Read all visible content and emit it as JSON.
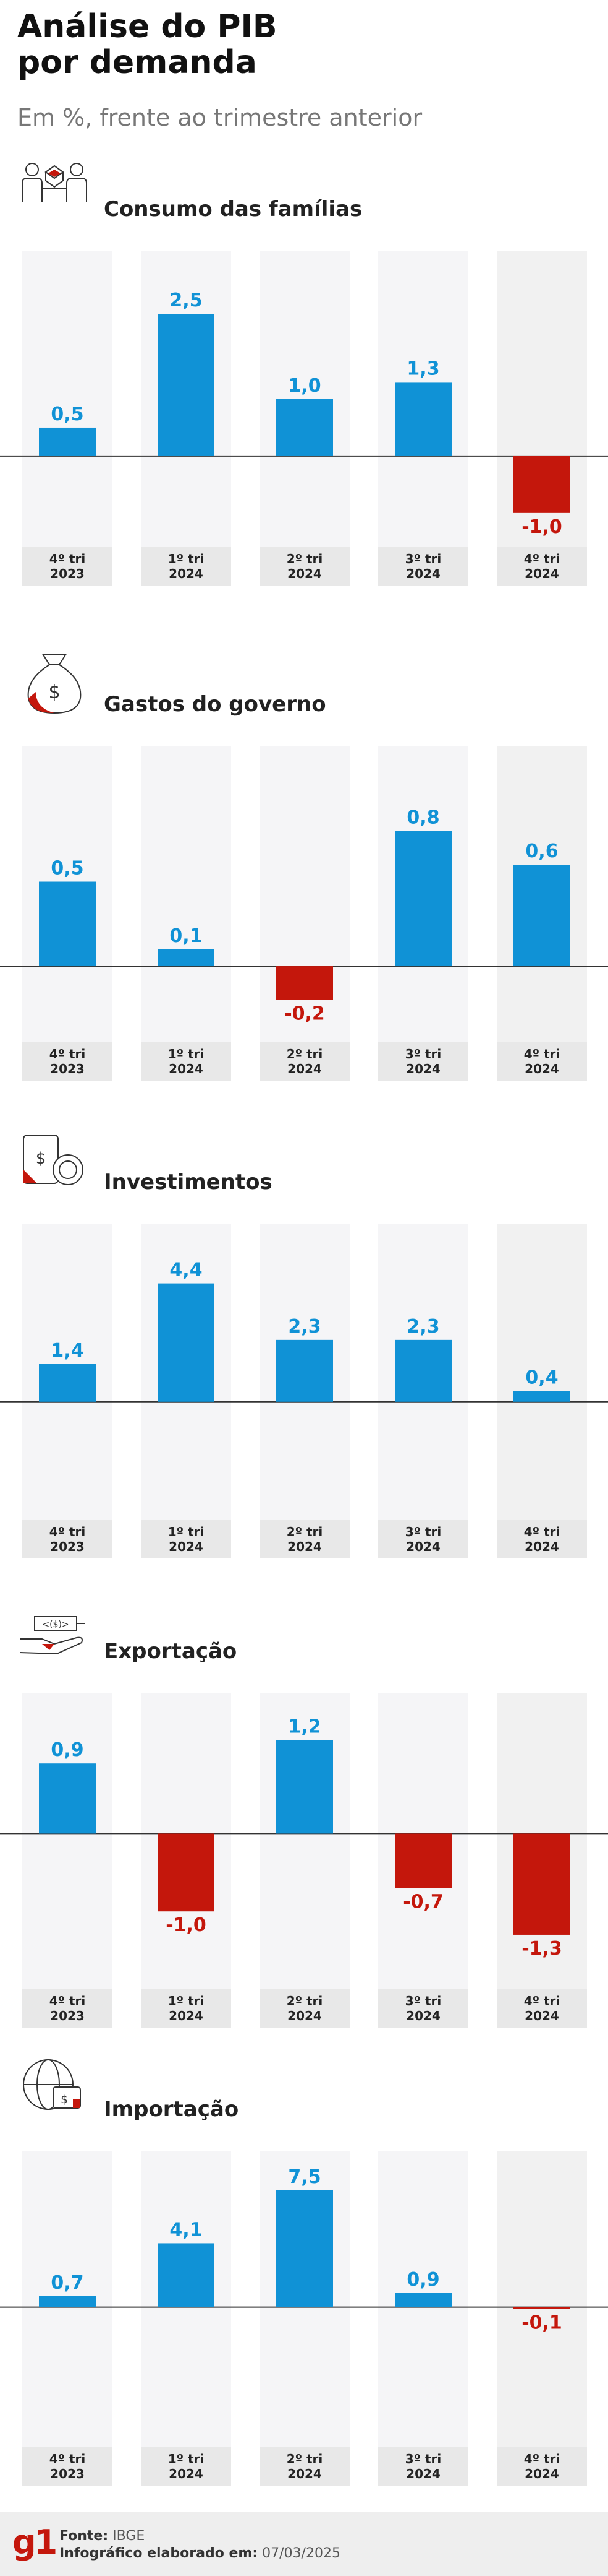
{
  "header": {
    "title_line1": "Análise do PIB",
    "title_line2": "por demanda",
    "subtitle": "Em %, frente ao trimestre anterior"
  },
  "colors": {
    "positive": "#1092d6",
    "negative": "#c4170c",
    "column_bg": "#f5f5f7",
    "label_bg": "#e8e8e8"
  },
  "footer": {
    "logo": "g1",
    "source_label": "Fonte:",
    "source_value": "IBGE",
    "date_label": "Infográfico elaborado em:",
    "date_value": "07/03/2025"
  },
  "chart_data": [
    {
      "type": "bar",
      "title": "Consumo das famílias",
      "icon": "family-gift-icon",
      "categories": [
        [
          "4º tri",
          "2023"
        ],
        [
          "1º tri",
          "2024"
        ],
        [
          "2º tri",
          "2024"
        ],
        [
          "3º tri",
          "2024"
        ],
        [
          "4º tri",
          "2024"
        ]
      ],
      "values": [
        0.5,
        2.5,
        1.0,
        1.3,
        -1.0
      ],
      "labels": [
        "0,5",
        "2,5",
        "1,0",
        "1,3",
        "-1,0"
      ]
    },
    {
      "type": "bar",
      "title": "Gastos do governo",
      "icon": "money-bag-icon",
      "categories": [
        [
          "4º tri",
          "2023"
        ],
        [
          "1º tri",
          "2024"
        ],
        [
          "2º tri",
          "2024"
        ],
        [
          "3º tri",
          "2024"
        ],
        [
          "4º tri",
          "2024"
        ]
      ],
      "values": [
        0.5,
        0.1,
        -0.2,
        0.8,
        0.6
      ],
      "labels": [
        "0,5",
        "0,1",
        "-0,2",
        "0,8",
        "0,6"
      ]
    },
    {
      "type": "bar",
      "title": "Investimentos",
      "icon": "investment-cycle-icon",
      "categories": [
        [
          "4º tri",
          "2023"
        ],
        [
          "1º tri",
          "2024"
        ],
        [
          "2º tri",
          "2024"
        ],
        [
          "3º tri",
          "2024"
        ],
        [
          "4º tri",
          "2024"
        ]
      ],
      "values": [
        1.4,
        4.4,
        2.3,
        2.3,
        0.4
      ],
      "labels": [
        "1,4",
        "4,4",
        "2,3",
        "2,3",
        "0,4"
      ]
    },
    {
      "type": "bar",
      "title": "Exportação",
      "icon": "money-hand-icon",
      "categories": [
        [
          "4º tri",
          "2023"
        ],
        [
          "1º tri",
          "2024"
        ],
        [
          "2º tri",
          "2024"
        ],
        [
          "3º tri",
          "2024"
        ],
        [
          "4º tri",
          "2024"
        ]
      ],
      "values": [
        0.9,
        -1.0,
        1.2,
        -0.7,
        -1.3
      ],
      "labels": [
        "0,9",
        "-1,0",
        "1,2",
        "-0,7",
        "-1,3"
      ]
    },
    {
      "type": "bar",
      "title": "Importação",
      "icon": "globe-wallet-icon",
      "categories": [
        [
          "4º tri",
          "2023"
        ],
        [
          "1º tri",
          "2024"
        ],
        [
          "2º tri",
          "2024"
        ],
        [
          "3º tri",
          "2024"
        ],
        [
          "4º tri",
          "2024"
        ]
      ],
      "values": [
        0.7,
        4.1,
        7.5,
        0.9,
        -0.1
      ],
      "labels": [
        "0,7",
        "4,1",
        "7,5",
        "0,9",
        "-0,1"
      ]
    }
  ]
}
